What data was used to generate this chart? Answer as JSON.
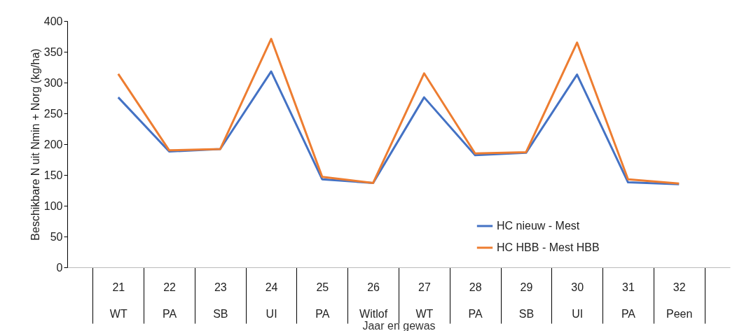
{
  "chart_data": {
    "type": "line",
    "xlabel": "Jaar en gewas",
    "ylabel": "Beschikbare N uit Nmin + Norg (kg/ha)",
    "categories": [
      "21 WT",
      "22 PA",
      "23 SB",
      "24 UI",
      "25 PA",
      "26 Witlof",
      "27 WT",
      "28 PA",
      "29 SB",
      "30 UI",
      "31 PA",
      "32 Peen"
    ],
    "series": [
      {
        "name": "HC nieuw - Mest",
        "color": "#4472c4",
        "values": [
          276,
          188,
          192,
          318,
          143,
          137,
          276,
          182,
          186,
          313,
          138,
          135
        ]
      },
      {
        "name": "HC HBB - Mest HBB",
        "color": "#ed7d31",
        "values": [
          314,
          190,
          192,
          371,
          147,
          137,
          315,
          185,
          187,
          365,
          143,
          136
        ]
      }
    ],
    "ylim": [
      0,
      400
    ],
    "yticks": [
      0,
      50,
      100,
      150,
      200,
      250,
      300,
      350,
      400
    ],
    "grid": false,
    "legend": "bottom right",
    "marker": "none",
    "line_style": "solid"
  }
}
